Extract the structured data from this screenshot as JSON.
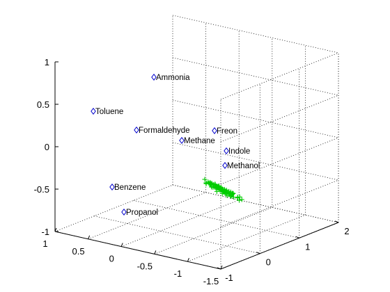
{
  "chart_data": {
    "type": "scatter",
    "projection": "3d",
    "grid": true,
    "box": "open-3d",
    "marker_color": "#0000cc",
    "cluster_color": "#00cc00",
    "axes": {
      "x": {
        "range": [
          -1.5,
          1
        ],
        "ticks": [
          "1",
          "0.5",
          "0",
          "-0.5",
          "-1",
          "-1.5"
        ]
      },
      "y": {
        "range": [
          -1,
          2
        ],
        "ticks": [
          "-1",
          "0",
          "1",
          "2"
        ]
      },
      "z": {
        "range": [
          -1,
          1
        ],
        "ticks": [
          "-1",
          "-0.5",
          "0",
          "0.5",
          "1"
        ]
      }
    },
    "labeled_points": [
      {
        "label": "Ammonia",
        "marker": "diamond"
      },
      {
        "label": "Toluene",
        "marker": "diamond"
      },
      {
        "label": "Formaldehyde",
        "marker": "diamond"
      },
      {
        "label": "Freon",
        "marker": "diamond"
      },
      {
        "label": "Methane",
        "marker": "diamond"
      },
      {
        "label": "Indole",
        "marker": "diamond"
      },
      {
        "label": "Methanol",
        "marker": "diamond"
      },
      {
        "label": "Benzene",
        "marker": "diamond"
      },
      {
        "label": "Propanol",
        "marker": "diamond"
      }
    ],
    "cluster": {
      "marker": "plus",
      "count": 90
    }
  }
}
